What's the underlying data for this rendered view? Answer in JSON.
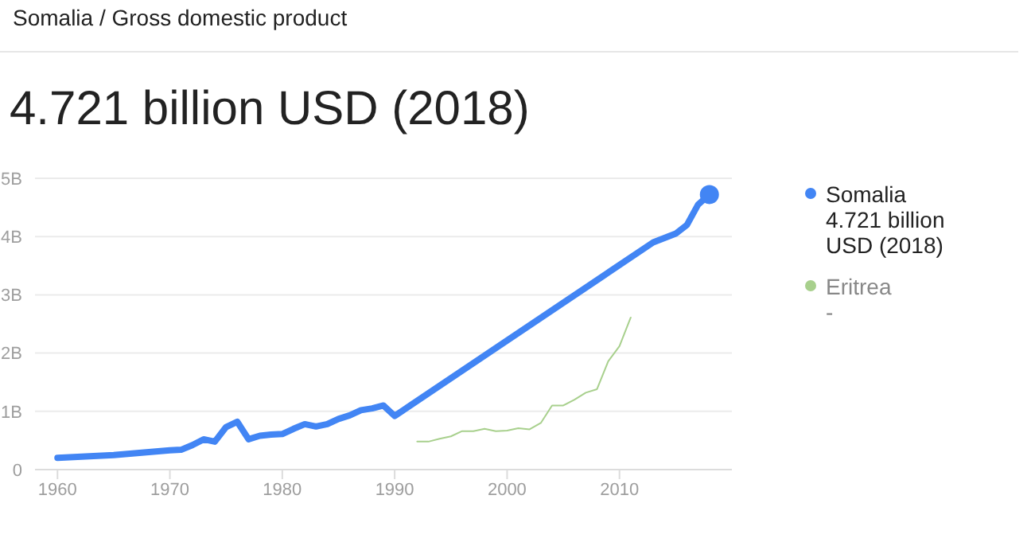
{
  "chart_data": {
    "type": "line",
    "title": "4.721 billion USD (2018)",
    "annotations": [
      "Somalia / Gross domestic product",
      "4.721 billion USD (2018)",
      "-"
    ],
    "series": [
      {
        "name": "Somalia",
        "color": "#4285f4",
        "x": [
          1960,
          1965,
          1970,
          1971,
          1972,
          1973,
          1974,
          1975,
          1976,
          1977,
          1978,
          1979,
          1980,
          1981,
          1982,
          1983,
          1984,
          1985,
          1986,
          1987,
          1988,
          1989,
          1990,
          2013,
          2015,
          2016,
          2017,
          2018
        ],
        "values": [
          0.2,
          0.25,
          0.33,
          0.34,
          0.42,
          0.52,
          0.48,
          0.73,
          0.82,
          0.52,
          0.58,
          0.6,
          0.61,
          0.7,
          0.78,
          0.74,
          0.78,
          0.87,
          0.93,
          1.02,
          1.05,
          1.1,
          0.92,
          3.9,
          4.05,
          4.2,
          4.55,
          4.721
        ]
      },
      {
        "name": "Eritrea",
        "color": "#a8d08d",
        "x": [
          1992,
          1993,
          1994,
          1995,
          1996,
          1997,
          1998,
          1999,
          2000,
          2001,
          2002,
          2003,
          2004,
          2005,
          2006,
          2007,
          2008,
          2009,
          2010,
          2011
        ],
        "values": [
          0.48,
          0.48,
          0.53,
          0.57,
          0.66,
          0.66,
          0.7,
          0.66,
          0.67,
          0.71,
          0.69,
          0.8,
          1.1,
          1.1,
          1.2,
          1.32,
          1.38,
          1.86,
          2.12,
          2.61
        ]
      }
    ],
    "xlim": [
      1958,
      2020
    ],
    "xticks": [
      1960,
      1970,
      1980,
      1990,
      2000,
      2010
    ],
    "ylim": [
      0,
      5
    ],
    "yticks": [
      0,
      {
        "value": 1,
        "label": "1B"
      },
      {
        "value": 2,
        "label": "2B"
      },
      {
        "value": 3,
        "label": "3B"
      },
      {
        "value": 4,
        "label": "4B"
      },
      {
        "value": 5,
        "label": "5B"
      }
    ],
    "grid": "y",
    "legend": "right"
  }
}
